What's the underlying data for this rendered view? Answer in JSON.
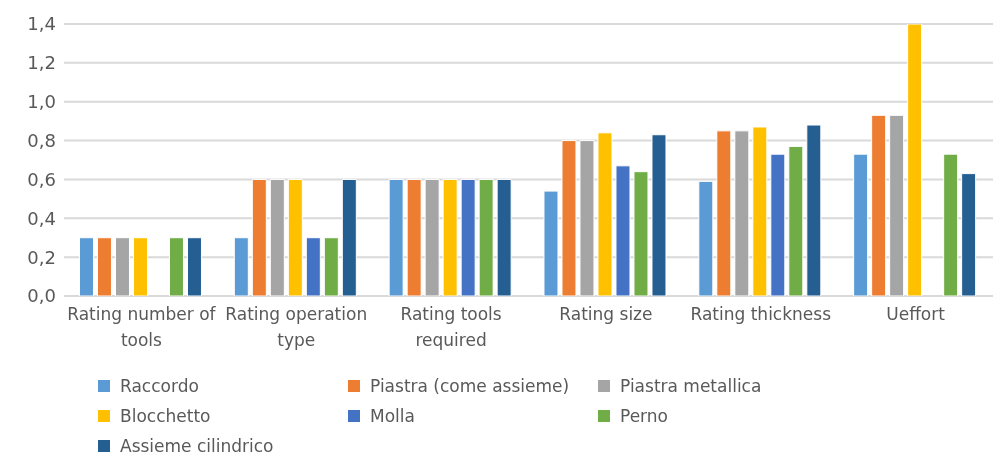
{
  "chart_data": {
    "type": "bar",
    "categories": [
      "Rating number of tools",
      "Rating operation type",
      "Rating tools required",
      "Rating size",
      "Rating thickness",
      "Ueffort"
    ],
    "series": [
      {
        "name": "Raccordo",
        "color": "#5b9bd5",
        "values": [
          0.3,
          0.3,
          0.6,
          0.54,
          0.59,
          0.73
        ]
      },
      {
        "name": "Piastra (come assieme)",
        "color": "#ed7d31",
        "values": [
          0.3,
          0.6,
          0.6,
          0.8,
          0.85,
          0.93
        ]
      },
      {
        "name": "Piastra metallica",
        "color": "#a5a5a5",
        "values": [
          0.3,
          0.6,
          0.6,
          0.8,
          0.85,
          0.93
        ]
      },
      {
        "name": "Blocchetto",
        "color": "#ffc000",
        "values": [
          0.3,
          0.6,
          0.6,
          0.84,
          0.87,
          1.4
        ]
      },
      {
        "name": "Molla",
        "color": "#4472c4",
        "values": [
          null,
          0.3,
          0.6,
          0.67,
          0.73,
          null
        ]
      },
      {
        "name": "Perno",
        "color": "#70ad47",
        "values": [
          0.3,
          0.3,
          0.6,
          0.64,
          0.77,
          0.73
        ]
      },
      {
        "name": "Assieme cilindrico",
        "color": "#255e91",
        "values": [
          0.3,
          0.6,
          0.6,
          0.83,
          0.88,
          0.63
        ]
      }
    ],
    "ylim": [
      0,
      1.4
    ],
    "yticks": [
      {
        "value": 0,
        "label": "0,0"
      },
      {
        "value": 0.2,
        "label": "0,2"
      },
      {
        "value": 0.4,
        "label": "0,4"
      },
      {
        "value": 0.6,
        "label": "0,6"
      },
      {
        "value": 0.8,
        "label": "0,8"
      },
      {
        "value": 1,
        "label": "1,0"
      },
      {
        "value": 1.2,
        "label": "1,2"
      },
      {
        "value": 1.4,
        "label": "1,4"
      }
    ],
    "grid": "y",
    "legend": "bottom"
  }
}
